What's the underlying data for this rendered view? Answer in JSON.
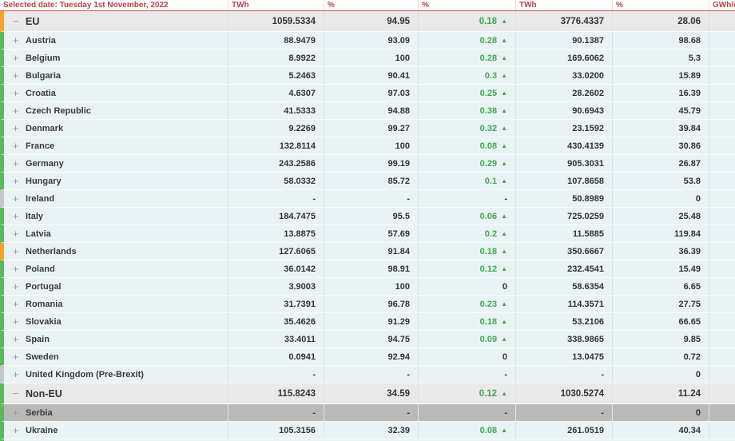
{
  "header": {
    "date_label": "Selected date: Tuesday 1st November, 2022",
    "columns": [
      "TWh",
      "%",
      "%",
      "TWh",
      "%",
      "GWh/d"
    ]
  },
  "colors": {
    "row_border_green": "#5cb85c",
    "row_border_orange": "#f5a329",
    "row_border_gray": "#c6c6c6",
    "trend_green": "#3fa94d",
    "header_red": "#b8434a"
  },
  "rows": [
    {
      "name": "EU",
      "group": true,
      "expand": "−",
      "border": "orange",
      "twh1": "1059.5334",
      "pct1": "94.95",
      "trend": "0.18",
      "trend_dir": "up",
      "twh2": "3776.4337",
      "pct2": "28.06",
      "gwhd": ""
    },
    {
      "name": "Austria",
      "group": false,
      "expand": "+",
      "border": "green",
      "twh1": "88.9479",
      "pct1": "93.09",
      "trend": "0.28",
      "trend_dir": "up",
      "twh2": "90.1387",
      "pct2": "98.68",
      "gwhd": ""
    },
    {
      "name": "Belgium",
      "group": false,
      "expand": "+",
      "border": "green",
      "twh1": "8.9922",
      "pct1": "100",
      "trend": "0.28",
      "trend_dir": "up",
      "twh2": "169.6062",
      "pct2": "5.3",
      "gwhd": ""
    },
    {
      "name": "Bulgaria",
      "group": false,
      "expand": "+",
      "border": "green",
      "twh1": "5.2463",
      "pct1": "90.41",
      "trend": "0.3",
      "trend_dir": "up",
      "twh2": "33.0200",
      "pct2": "15.89",
      "gwhd": ""
    },
    {
      "name": "Croatia",
      "group": false,
      "expand": "+",
      "border": "green",
      "twh1": "4.6307",
      "pct1": "97.03",
      "trend": "0.25",
      "trend_dir": "up",
      "twh2": "28.2602",
      "pct2": "16.39",
      "gwhd": ""
    },
    {
      "name": "Czech Republic",
      "group": false,
      "expand": "+",
      "border": "green",
      "twh1": "41.5333",
      "pct1": "94.88",
      "trend": "0.38",
      "trend_dir": "up",
      "twh2": "90.6943",
      "pct2": "45.79",
      "gwhd": ""
    },
    {
      "name": "Denmark",
      "group": false,
      "expand": "+",
      "border": "green",
      "twh1": "9.2269",
      "pct1": "99.27",
      "trend": "0.32",
      "trend_dir": "up",
      "twh2": "23.1592",
      "pct2": "39.84",
      "gwhd": ""
    },
    {
      "name": "France",
      "group": false,
      "expand": "+",
      "border": "green",
      "twh1": "132.8114",
      "pct1": "100",
      "trend": "0.08",
      "trend_dir": "up",
      "twh2": "430.4139",
      "pct2": "30.86",
      "gwhd": ""
    },
    {
      "name": "Germany",
      "group": false,
      "expand": "+",
      "border": "green",
      "twh1": "243.2586",
      "pct1": "99.19",
      "trend": "0.29",
      "trend_dir": "up",
      "twh2": "905.3031",
      "pct2": "26.87",
      "gwhd": ""
    },
    {
      "name": "Hungary",
      "group": false,
      "expand": "+",
      "border": "green",
      "twh1": "58.0332",
      "pct1": "85.72",
      "trend": "0.1",
      "trend_dir": "up",
      "twh2": "107.8658",
      "pct2": "53.8",
      "gwhd": ""
    },
    {
      "name": "Ireland",
      "group": false,
      "expand": "+",
      "border": "gray",
      "twh1": "-",
      "pct1": "-",
      "trend": "-",
      "trend_dir": "none",
      "twh2": "50.8989",
      "pct2": "0",
      "gwhd": ""
    },
    {
      "name": "Italy",
      "group": false,
      "expand": "+",
      "border": "green",
      "twh1": "184.7475",
      "pct1": "95.5",
      "trend": "0.06",
      "trend_dir": "up",
      "twh2": "725.0259",
      "pct2": "25.48",
      "gwhd": ""
    },
    {
      "name": "Latvia",
      "group": false,
      "expand": "+",
      "border": "green",
      "twh1": "13.8875",
      "pct1": "57.69",
      "trend": "0.2",
      "trend_dir": "up",
      "twh2": "11.5885",
      "pct2": "119.84",
      "gwhd": ""
    },
    {
      "name": "Netherlands",
      "group": false,
      "expand": "+",
      "border": "orange",
      "twh1": "127.6065",
      "pct1": "91.84",
      "trend": "0.18",
      "trend_dir": "up",
      "twh2": "350.6667",
      "pct2": "36.39",
      "gwhd": ""
    },
    {
      "name": "Poland",
      "group": false,
      "expand": "+",
      "border": "green",
      "twh1": "36.0142",
      "pct1": "98.91",
      "trend": "0.12",
      "trend_dir": "up",
      "twh2": "232.4541",
      "pct2": "15.49",
      "gwhd": ""
    },
    {
      "name": "Portugal",
      "group": false,
      "expand": "+",
      "border": "green",
      "twh1": "3.9003",
      "pct1": "100",
      "trend": "0",
      "trend_dir": "none",
      "twh2": "58.6354",
      "pct2": "6.65",
      "gwhd": ""
    },
    {
      "name": "Romania",
      "group": false,
      "expand": "+",
      "border": "green",
      "twh1": "31.7391",
      "pct1": "96.78",
      "trend": "0.23",
      "trend_dir": "up",
      "twh2": "114.3571",
      "pct2": "27.75",
      "gwhd": ""
    },
    {
      "name": "Slovakia",
      "group": false,
      "expand": "+",
      "border": "green",
      "twh1": "35.4626",
      "pct1": "91.29",
      "trend": "0.18",
      "trend_dir": "up",
      "twh2": "53.2106",
      "pct2": "66.65",
      "gwhd": ""
    },
    {
      "name": "Spain",
      "group": false,
      "expand": "+",
      "border": "green",
      "twh1": "33.4011",
      "pct1": "94.75",
      "trend": "0.09",
      "trend_dir": "up",
      "twh2": "338.9865",
      "pct2": "9.85",
      "gwhd": ""
    },
    {
      "name": "Sweden",
      "group": false,
      "expand": "+",
      "border": "green",
      "twh1": "0.0941",
      "pct1": "92.94",
      "trend": "0",
      "trend_dir": "none",
      "twh2": "13.0475",
      "pct2": "0.72",
      "gwhd": ""
    },
    {
      "name": "United Kingdom (Pre-Brexit)",
      "group": false,
      "expand": "+",
      "border": "gray",
      "twh1": "-",
      "pct1": "-",
      "trend": "-",
      "trend_dir": "none",
      "twh2": "-",
      "pct2": "0",
      "gwhd": ""
    },
    {
      "name": "Non-EU",
      "group": true,
      "expand": "−",
      "border": "green",
      "twh1": "115.8243",
      "pct1": "34.59",
      "trend": "0.12",
      "trend_dir": "up",
      "twh2": "1030.5274",
      "pct2": "11.24",
      "gwhd": ""
    },
    {
      "name": "Serbia",
      "group": false,
      "dim": true,
      "expand": "+",
      "border": "green",
      "twh1": "-",
      "pct1": "-",
      "trend": "-",
      "trend_dir": "none",
      "twh2": "-",
      "pct2": "0",
      "gwhd": ""
    },
    {
      "name": "Ukraine",
      "group": false,
      "expand": "+",
      "border": "green",
      "twh1": "105.3156",
      "pct1": "32.39",
      "trend": "0.08",
      "trend_dir": "up",
      "twh2": "261.0519",
      "pct2": "40.34",
      "gwhd": ""
    }
  ]
}
